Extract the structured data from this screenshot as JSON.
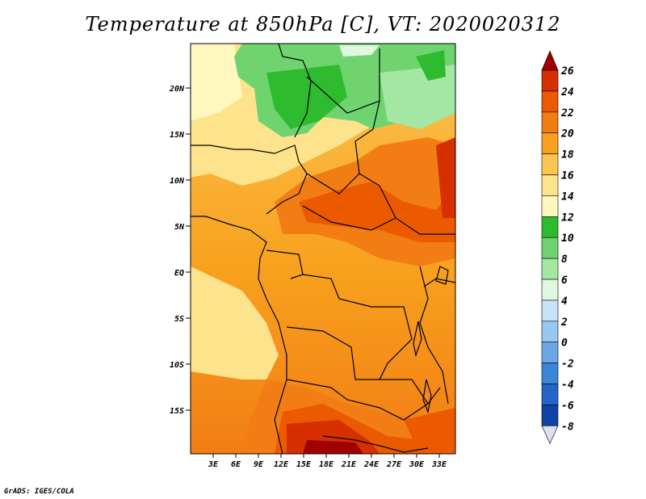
{
  "title": "Temperature at 850hPa [C], VT: 2020020312",
  "credit": "GrADS: IGES/COLA",
  "map": {
    "lon_range": [
      -1,
      35
    ],
    "lat_range": [
      -19.5,
      24.5
    ],
    "lon_ticks": [
      "3E",
      "6E",
      "9E",
      "12E",
      "15E",
      "18E",
      "21E",
      "24E",
      "27E",
      "30E",
      "33E"
    ],
    "lat_ticks": [
      "20N",
      "15N",
      "10N",
      "5N",
      "EQ",
      "5S",
      "10S",
      "15S"
    ]
  },
  "colorbar": {
    "labels": [
      "26",
      "24",
      "22",
      "20",
      "18",
      "16",
      "14",
      "12",
      "10",
      "8",
      "6",
      "4",
      "2",
      "0",
      "-2",
      "-4",
      "-6",
      "-8"
    ],
    "colors": [
      "#a00000",
      "#d62f00",
      "#ec5a00",
      "#f27d14",
      "#f8a11e",
      "#fcc552",
      "#fde38c",
      "#fff7be",
      "#2fbb2f",
      "#6fd46f",
      "#a3e7a3",
      "#e0f8e0",
      "#c8e3f8",
      "#98c7ef",
      "#6aa7e4",
      "#3b86d8",
      "#2466c8",
      "#1143a6",
      "#0c237b"
    ]
  }
}
